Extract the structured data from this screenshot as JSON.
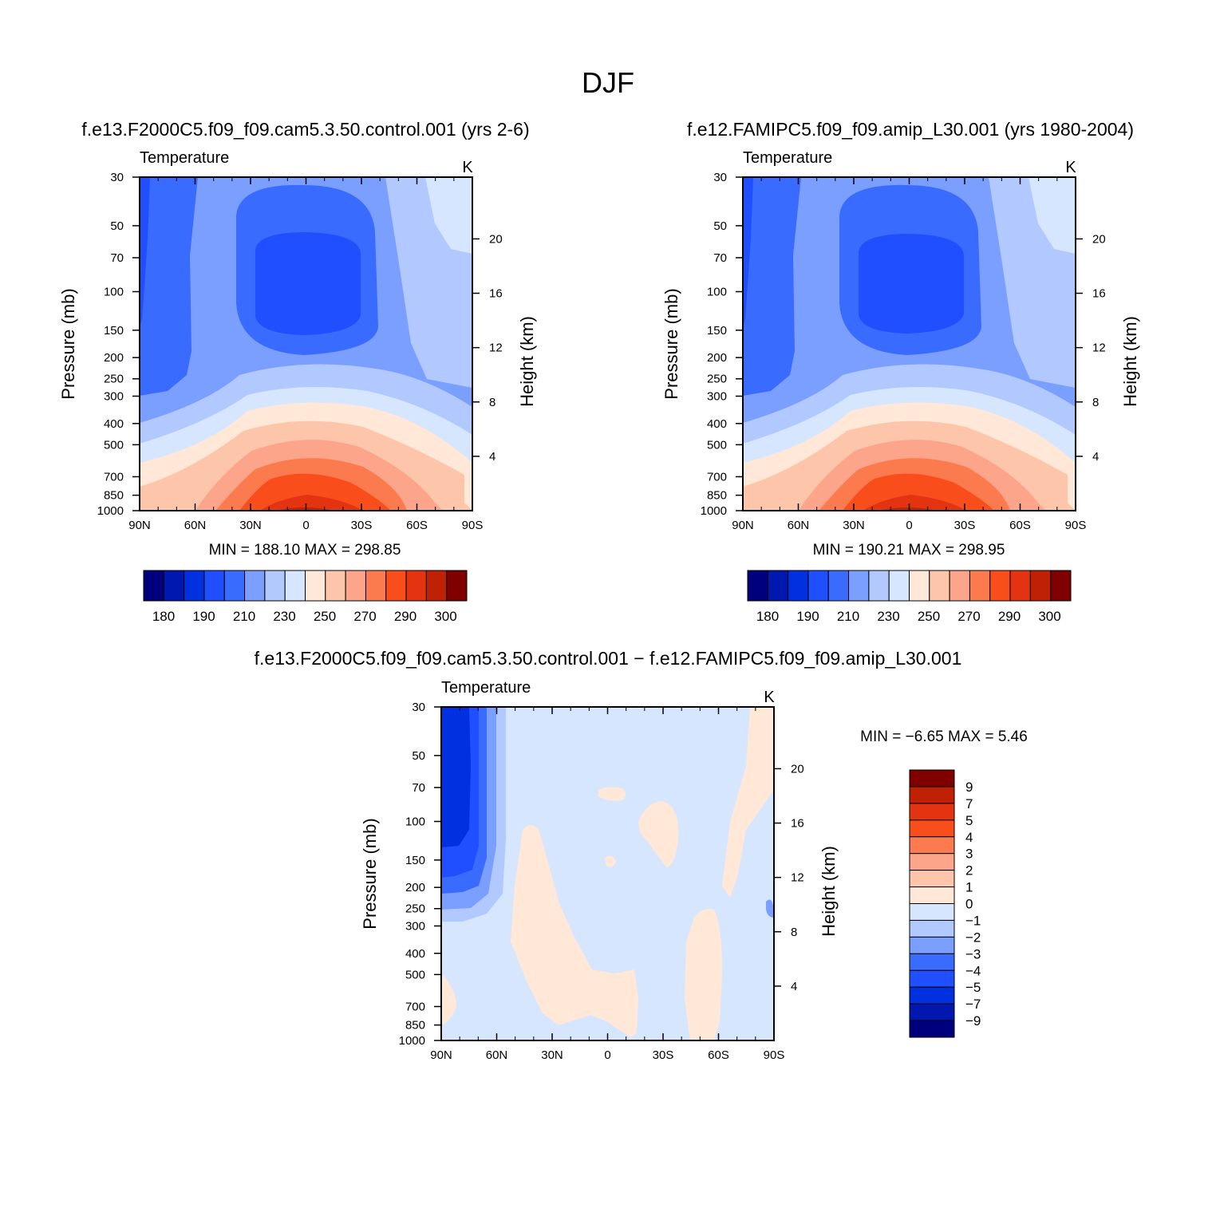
{
  "figure_title": "DJF",
  "colors": {
    "temperature_scale": [
      "#00007f",
      "#0018b0",
      "#0030e0",
      "#1f4fff",
      "#3a6bff",
      "#7b9fff",
      "#b2c9ff",
      "#d6e6ff",
      "#ffe8d8",
      "#fdc6ab",
      "#fca58a",
      "#fb7b4e",
      "#fa4d1c",
      "#e33310",
      "#c02004",
      "#800000"
    ],
    "difference_scale": [
      "#00007f",
      "#0018b0",
      "#0030e0",
      "#1f4fff",
      "#3a6bff",
      "#7b9fff",
      "#b2c9ff",
      "#d6e6ff",
      "#ffe8d8",
      "#fdc6ab",
      "#fca58a",
      "#fb7b4e",
      "#fa4d1c",
      "#e33310",
      "#c02004",
      "#800000"
    ]
  },
  "chart_data": [
    {
      "type": "heatmap",
      "id": "control",
      "title": "f.e13.F2000C5.f09_f09.cam5.3.50.control.001 (yrs 2-6)",
      "variable": "Temperature",
      "units": "K",
      "xlabel": "",
      "ylabel": "Pressure (mb)",
      "ylabel_right": "Height (km)",
      "x_ticks": [
        "90N",
        "60N",
        "30N",
        "0",
        "30S",
        "60S",
        "90S"
      ],
      "y_ticks": [
        30,
        50,
        70,
        100,
        150,
        200,
        250,
        300,
        400,
        500,
        700,
        850,
        1000
      ],
      "y_range": [
        1000,
        30
      ],
      "right_ticks": [
        4,
        8,
        12,
        16,
        20
      ],
      "min_label": "MIN =",
      "min_value": "188.10",
      "max_label": "MAX =",
      "max_value": "298.85",
      "colorbar_ticks": [
        180,
        190,
        210,
        230,
        250,
        270,
        290,
        300
      ],
      "field_description": "zonal mean temperature; coldest (~190 K) near tropical tropopause 70-100 mb, warmest (~298 K) at tropical surface"
    },
    {
      "type": "heatmap",
      "id": "amip",
      "title": "f.e12.FAMIPC5.f09_f09.amip_L30.001 (yrs 1980-2004)",
      "variable": "Temperature",
      "units": "K",
      "xlabel": "",
      "ylabel": "Pressure (mb)",
      "ylabel_right": "Height (km)",
      "x_ticks": [
        "90N",
        "60N",
        "30N",
        "0",
        "30S",
        "60S",
        "90S"
      ],
      "y_ticks": [
        30,
        50,
        70,
        100,
        150,
        200,
        250,
        300,
        400,
        500,
        700,
        850,
        1000
      ],
      "y_range": [
        1000,
        30
      ],
      "right_ticks": [
        4,
        8,
        12,
        16,
        20
      ],
      "min_label": "MIN =",
      "min_value": "190.21",
      "max_label": "MAX =",
      "max_value": "298.95",
      "colorbar_ticks": [
        180,
        190,
        210,
        230,
        250,
        270,
        290,
        300
      ]
    },
    {
      "type": "heatmap",
      "id": "difference",
      "title": "f.e13.F2000C5.f09_f09.cam5.3.50.control.001 − f.e12.FAMIPC5.f09_f09.amip_L30.001",
      "variable": "Temperature",
      "units": "K",
      "xlabel": "",
      "ylabel": "Pressure (mb)",
      "ylabel_right": "Height (km)",
      "x_ticks": [
        "90N",
        "60N",
        "30N",
        "0",
        "30S",
        "60S",
        "90S"
      ],
      "y_ticks": [
        30,
        50,
        70,
        100,
        150,
        200,
        250,
        300,
        400,
        500,
        700,
        850,
        1000
      ],
      "y_range": [
        1000,
        30
      ],
      "right_ticks": [
        4,
        8,
        12,
        16,
        20
      ],
      "min_label": "MIN =",
      "min_value": "−6.65",
      "max_label": "MAX =",
      "max_value": "5.46",
      "colorbar_ticks": [
        "9",
        "7",
        "5",
        "4",
        "3",
        "2",
        "1",
        "0",
        "−1",
        "−2",
        "−3",
        "−4",
        "−5",
        "−7",
        "−9"
      ],
      "field_description": "mostly between -1 and 0 K; cold anomaly up to -6.65 K over north polar stratosphere; scattered 0 to 1 K patches"
    }
  ]
}
